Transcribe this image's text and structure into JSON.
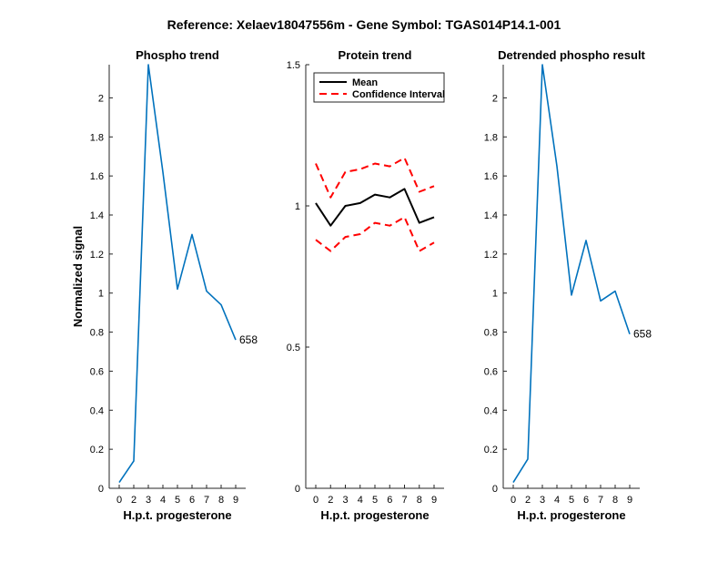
{
  "suptitle": "Reference:  Xelaev18047556m - Gene Symbol:  TGAS014P14.1-001",
  "chart_data": [
    {
      "type": "line",
      "title": "Phospho trend",
      "xlabel": "H.p.t. progesterone",
      "ylabel": "Normalized signal",
      "categories": [
        "0",
        "2",
        "3",
        "4",
        "5",
        "6",
        "7",
        "8",
        "9"
      ],
      "ylim": [
        0,
        2.17
      ],
      "yticks": [
        "0",
        "0.2",
        "0.4",
        "0.6",
        "0.8",
        "1",
        "1.2",
        "1.4",
        "1.6",
        "1.8",
        "2"
      ],
      "series": [
        {
          "values": [
            0.03,
            0.14,
            2.17,
            1.62,
            1.02,
            1.3,
            1.01,
            0.94,
            0.76
          ],
          "color": "#0072BD"
        }
      ],
      "end_label": "658"
    },
    {
      "type": "line",
      "title": "Protein trend",
      "xlabel": "H.p.t. progesterone",
      "ylabel": "",
      "categories": [
        "0",
        "2",
        "3",
        "4",
        "5",
        "6",
        "7",
        "8",
        "9"
      ],
      "ylim": [
        0,
        1.5
      ],
      "yticks": [
        "0",
        "0.5",
        "1",
        "1.5"
      ],
      "legend": {
        "location": "top-left",
        "entries": [
          "Mean",
          "Confidence Interval"
        ]
      },
      "series": [
        {
          "name": "Mean",
          "values": [
            1.01,
            0.93,
            1.0,
            1.01,
            1.04,
            1.03,
            1.06,
            0.94,
            0.96
          ],
          "color": "#000000",
          "style": "solid"
        },
        {
          "name": "Confidence Interval",
          "values": [
            1.15,
            1.03,
            1.12,
            1.13,
            1.15,
            1.14,
            1.17,
            1.05,
            1.07
          ],
          "color": "#FF0000",
          "style": "dashed"
        },
        {
          "name": "Confidence Interval",
          "values": [
            0.88,
            0.84,
            0.89,
            0.9,
            0.94,
            0.93,
            0.96,
            0.84,
            0.87
          ],
          "color": "#FF0000",
          "style": "dashed"
        }
      ]
    },
    {
      "type": "line",
      "title": "Detrended phospho result",
      "xlabel": "H.p.t. progesterone",
      "ylabel": "",
      "categories": [
        "0",
        "2",
        "3",
        "4",
        "5",
        "6",
        "7",
        "8",
        "9"
      ],
      "ylim": [
        0,
        2.17
      ],
      "yticks": [
        "0",
        "0.2",
        "0.4",
        "0.6",
        "0.8",
        "1",
        "1.2",
        "1.4",
        "1.6",
        "1.8",
        "2"
      ],
      "series": [
        {
          "values": [
            0.03,
            0.15,
            2.17,
            1.65,
            0.99,
            1.27,
            0.96,
            1.01,
            0.79
          ],
          "color": "#0072BD"
        }
      ],
      "end_label": "658"
    }
  ]
}
